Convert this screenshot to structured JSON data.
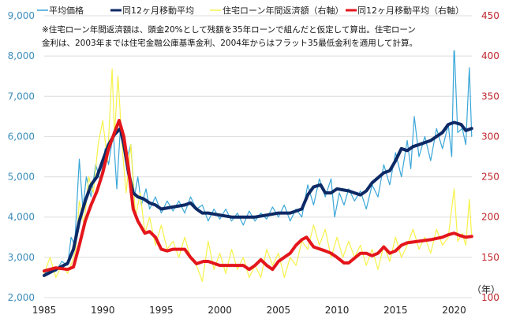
{
  "chart_data": {
    "type": "line",
    "legend_position": "top",
    "grid": true,
    "legend": [
      "平均価格",
      "同12ヶ月移動平均",
      "住宅ローン年間返済額（右軸）",
      "同12ヶ月移動平均（右軸）"
    ],
    "note_lines": [
      "※住宅ローン年間返済額は、頭金20%として残額を35年ローンで組んだと仮定して算出。住宅ローン",
      "金利は、2003年までは住宅金融公庫基準金利、2004年からはフラット35最低金利を適用して計算。"
    ],
    "x_unit": "（年）",
    "xlim": [
      1985,
      2021.6
    ],
    "x_ticks": [
      "1985",
      "1990",
      "1995",
      "2000",
      "2005",
      "2010",
      "2015",
      "2020"
    ],
    "y_left": {
      "lim": [
        2000,
        9000
      ],
      "ticks": [
        "2,000",
        "3,000",
        "4,000",
        "5,000",
        "6,000",
        "7,000",
        "8,000",
        "9,000"
      ]
    },
    "y_right": {
      "lim": [
        100,
        450
      ],
      "ticks": [
        "100",
        "150",
        "200",
        "250",
        "300",
        "350",
        "400",
        "450"
      ]
    },
    "colors": {
      "price": "#3aa6d8",
      "price_ma": "#0d2a66",
      "loan": "#f7f24a",
      "loan_ma": "#e3161b",
      "left_axis": "#3c8dbb",
      "right_axis": "#c0272d"
    },
    "series": [
      {
        "name": "平均価格",
        "axis": "left",
        "points": [
          [
            1985,
            2600
          ],
          [
            1985.5,
            2700
          ],
          [
            1986,
            2650
          ],
          [
            1986.5,
            2900
          ],
          [
            1987,
            2800
          ],
          [
            1987.3,
            3500
          ],
          [
            1987.6,
            3300
          ],
          [
            1988,
            5440
          ],
          [
            1988.3,
            4200
          ],
          [
            1988.6,
            5000
          ],
          [
            1989,
            4500
          ],
          [
            1989.4,
            5300
          ],
          [
            1989.8,
            4900
          ],
          [
            1990.2,
            5700
          ],
          [
            1990.5,
            5300
          ],
          [
            1990.9,
            6100
          ],
          [
            1991.2,
            4700
          ],
          [
            1991.5,
            6200
          ],
          [
            1991.8,
            5900
          ],
          [
            1992.1,
            5500
          ],
          [
            1992.4,
            5800
          ],
          [
            1992.7,
            4500
          ],
          [
            1993,
            5000
          ],
          [
            1993.3,
            4300
          ],
          [
            1993.7,
            4700
          ],
          [
            1994,
            4200
          ],
          [
            1994.5,
            4500
          ],
          [
            1995,
            4100
          ],
          [
            1995.5,
            4400
          ],
          [
            1996,
            4150
          ],
          [
            1996.5,
            4400
          ],
          [
            1997,
            4100
          ],
          [
            1997.5,
            4500
          ],
          [
            1998,
            4200
          ],
          [
            1998.5,
            4300
          ],
          [
            1999,
            3900
          ],
          [
            1999.5,
            4200
          ],
          [
            2000,
            3950
          ],
          [
            2000.5,
            4200
          ],
          [
            2001,
            3900
          ],
          [
            2001.5,
            4100
          ],
          [
            2002,
            3800
          ],
          [
            2002.5,
            4150
          ],
          [
            2003,
            3900
          ],
          [
            2003.5,
            4100
          ],
          [
            2004,
            3950
          ],
          [
            2004.5,
            4250
          ],
          [
            2005,
            4000
          ],
          [
            2005.5,
            4300
          ],
          [
            2006,
            3900
          ],
          [
            2006.5,
            4200
          ],
          [
            2007,
            4000
          ],
          [
            2007.5,
            4800
          ],
          [
            2008,
            4300
          ],
          [
            2008.5,
            4950
          ],
          [
            2009,
            4500
          ],
          [
            2009.5,
            4950
          ],
          [
            2009.8,
            4000
          ],
          [
            2010.2,
            4600
          ],
          [
            2010.6,
            4300
          ],
          [
            2011,
            4700
          ],
          [
            2011.5,
            4400
          ],
          [
            2012,
            4650
          ],
          [
            2012.5,
            4200
          ],
          [
            2013,
            4800
          ],
          [
            2013.5,
            4500
          ],
          [
            2014,
            5300
          ],
          [
            2014.5,
            4800
          ],
          [
            2015,
            5600
          ],
          [
            2015.5,
            5000
          ],
          [
            2016,
            5900
          ],
          [
            2016.3,
            5200
          ],
          [
            2016.6,
            6500
          ],
          [
            2017,
            5500
          ],
          [
            2017.5,
            6000
          ],
          [
            2018,
            5400
          ],
          [
            2018.5,
            6200
          ],
          [
            2019,
            5700
          ],
          [
            2019.5,
            6300
          ],
          [
            2019.8,
            5500
          ],
          [
            2020,
            8320
          ],
          [
            2020.3,
            6100
          ],
          [
            2020.7,
            6200
          ],
          [
            2021,
            5800
          ],
          [
            2021.3,
            7710
          ],
          [
            2021.5,
            6000
          ]
        ]
      },
      {
        "name": "同12ヶ月移動平均",
        "axis": "left",
        "points": [
          [
            1985,
            2550
          ],
          [
            1986,
            2700
          ],
          [
            1987,
            2850
          ],
          [
            1987.5,
            3200
          ],
          [
            1988,
            3900
          ],
          [
            1988.5,
            4400
          ],
          [
            1989,
            4800
          ],
          [
            1989.5,
            5000
          ],
          [
            1990,
            5400
          ],
          [
            1990.5,
            5800
          ],
          [
            1991,
            6050
          ],
          [
            1991.5,
            6200
          ],
          [
            1991.8,
            5800
          ],
          [
            1992.2,
            5100
          ],
          [
            1992.6,
            4600
          ],
          [
            1993,
            4500
          ],
          [
            1993.5,
            4450
          ],
          [
            1994,
            4350
          ],
          [
            1994.5,
            4300
          ],
          [
            1995,
            4200
          ],
          [
            1996,
            4250
          ],
          [
            1997,
            4300
          ],
          [
            1997.5,
            4350
          ],
          [
            1998,
            4200
          ],
          [
            1998.5,
            4100
          ],
          [
            1999,
            4100
          ],
          [
            2000,
            4050
          ],
          [
            2001,
            4000
          ],
          [
            2002,
            4000
          ],
          [
            2003,
            4000
          ],
          [
            2004,
            4050
          ],
          [
            2005,
            4100
          ],
          [
            2006,
            4100
          ],
          [
            2007,
            4200
          ],
          [
            2007.5,
            4550
          ],
          [
            2008,
            4750
          ],
          [
            2008.6,
            4800
          ],
          [
            2009,
            4600
          ],
          [
            2009.5,
            4600
          ],
          [
            2010,
            4700
          ],
          [
            2011,
            4650
          ],
          [
            2012,
            4550
          ],
          [
            2012.5,
            4650
          ],
          [
            2013,
            4850
          ],
          [
            2014,
            5100
          ],
          [
            2014.5,
            5150
          ],
          [
            2015,
            5400
          ],
          [
            2015.5,
            5700
          ],
          [
            2016,
            5650
          ],
          [
            2016.5,
            5750
          ],
          [
            2017,
            5800
          ],
          [
            2018,
            5900
          ],
          [
            2019,
            6100
          ],
          [
            2019.5,
            6300
          ],
          [
            2020,
            6350
          ],
          [
            2020.6,
            6300
          ],
          [
            2021,
            6150
          ],
          [
            2021.5,
            6200
          ]
        ]
      },
      {
        "name": "住宅ローン年間返済額（右軸）",
        "axis": "right",
        "points": [
          [
            1985,
            130
          ],
          [
            1985.5,
            150
          ],
          [
            1986,
            125
          ],
          [
            1986.5,
            140
          ],
          [
            1987,
            130
          ],
          [
            1987.4,
            145
          ],
          [
            1987.7,
            160
          ],
          [
            1988,
            220
          ],
          [
            1988.4,
            190
          ],
          [
            1988.8,
            250
          ],
          [
            1989.2,
            230
          ],
          [
            1989.6,
            290
          ],
          [
            1990,
            320
          ],
          [
            1990.4,
            270
          ],
          [
            1990.8,
            384
          ],
          [
            1991,
            300
          ],
          [
            1991.3,
            375
          ],
          [
            1991.7,
            280
          ],
          [
            1992,
            230
          ],
          [
            1992.4,
            290
          ],
          [
            1992.8,
            200
          ],
          [
            1993.2,
            230
          ],
          [
            1993.6,
            180
          ],
          [
            1994,
            200
          ],
          [
            1994.5,
            165
          ],
          [
            1995,
            190
          ],
          [
            1995.5,
            160
          ],
          [
            1996,
            170
          ],
          [
            1996.5,
            150
          ],
          [
            1997,
            175
          ],
          [
            1997.5,
            150
          ],
          [
            1998,
            140
          ],
          [
            1998.5,
            120
          ],
          [
            1999,
            170
          ],
          [
            1999.5,
            135
          ],
          [
            2000,
            155
          ],
          [
            2000.5,
            130
          ],
          [
            2001,
            160
          ],
          [
            2001.5,
            135
          ],
          [
            2002,
            150
          ],
          [
            2002.5,
            125
          ],
          [
            2003,
            140
          ],
          [
            2003.5,
            125
          ],
          [
            2004,
            160
          ],
          [
            2004.5,
            140
          ],
          [
            2005,
            155
          ],
          [
            2005.5,
            125
          ],
          [
            2006,
            150
          ],
          [
            2006.5,
            140
          ],
          [
            2007,
            170
          ],
          [
            2007.5,
            160
          ],
          [
            2008,
            190
          ],
          [
            2008.5,
            165
          ],
          [
            2009,
            185
          ],
          [
            2009.5,
            150
          ],
          [
            2010,
            175
          ],
          [
            2010.5,
            150
          ],
          [
            2011,
            170
          ],
          [
            2011.5,
            150
          ],
          [
            2012,
            165
          ],
          [
            2012.5,
            140
          ],
          [
            2013,
            160
          ],
          [
            2013.5,
            135
          ],
          [
            2014,
            165
          ],
          [
            2014.5,
            145
          ],
          [
            2015,
            175
          ],
          [
            2015.5,
            150
          ],
          [
            2016,
            165
          ],
          [
            2016.5,
            185
          ],
          [
            2017,
            160
          ],
          [
            2017.5,
            175
          ],
          [
            2018,
            155
          ],
          [
            2018.5,
            185
          ],
          [
            2019,
            165
          ],
          [
            2019.5,
            175
          ],
          [
            2020,
            235
          ],
          [
            2020.3,
            170
          ],
          [
            2020.7,
            180
          ],
          [
            2021,
            165
          ],
          [
            2021.3,
            222
          ],
          [
            2021.5,
            175
          ]
        ]
      },
      {
        "name": "同12ヶ月移動平均（右軸）",
        "axis": "right",
        "points": [
          [
            1985,
            133
          ],
          [
            1986,
            137
          ],
          [
            1987,
            135
          ],
          [
            1987.5,
            138
          ],
          [
            1988,
            165
          ],
          [
            1988.5,
            195
          ],
          [
            1989,
            215
          ],
          [
            1989.5,
            232
          ],
          [
            1990,
            255
          ],
          [
            1990.5,
            285
          ],
          [
            1991,
            305
          ],
          [
            1991.4,
            320
          ],
          [
            1991.8,
            300
          ],
          [
            1992.2,
            260
          ],
          [
            1992.6,
            210
          ],
          [
            1993,
            195
          ],
          [
            1993.6,
            180
          ],
          [
            1994,
            182
          ],
          [
            1994.5,
            175
          ],
          [
            1995,
            160
          ],
          [
            1995.5,
            158
          ],
          [
            1996,
            160
          ],
          [
            1997,
            160
          ],
          [
            1997.5,
            150
          ],
          [
            1998,
            142
          ],
          [
            1998.6,
            145
          ],
          [
            1999,
            145
          ],
          [
            2000,
            140
          ],
          [
            2001,
            140
          ],
          [
            2002,
            140
          ],
          [
            2002.5,
            135
          ],
          [
            2003,
            140
          ],
          [
            2003.5,
            147
          ],
          [
            2004,
            140
          ],
          [
            2004.5,
            135
          ],
          [
            2005,
            145
          ],
          [
            2006,
            155
          ],
          [
            2006.5,
            165
          ],
          [
            2007,
            172
          ],
          [
            2007.4,
            175
          ],
          [
            2008,
            163
          ],
          [
            2009,
            158
          ],
          [
            2009.5,
            155
          ],
          [
            2010,
            150
          ],
          [
            2010.6,
            143
          ],
          [
            2011,
            143
          ],
          [
            2012,
            155
          ],
          [
            2012.5,
            155
          ],
          [
            2013,
            152
          ],
          [
            2013.5,
            155
          ],
          [
            2014,
            163
          ],
          [
            2014.5,
            155
          ],
          [
            2015,
            158
          ],
          [
            2015.5,
            165
          ],
          [
            2016,
            168
          ],
          [
            2017,
            170
          ],
          [
            2018,
            172
          ],
          [
            2019,
            175
          ],
          [
            2019.5,
            178
          ],
          [
            2020,
            180
          ],
          [
            2020.5,
            177
          ],
          [
            2021,
            175
          ],
          [
            2021.5,
            176
          ]
        ]
      }
    ]
  }
}
